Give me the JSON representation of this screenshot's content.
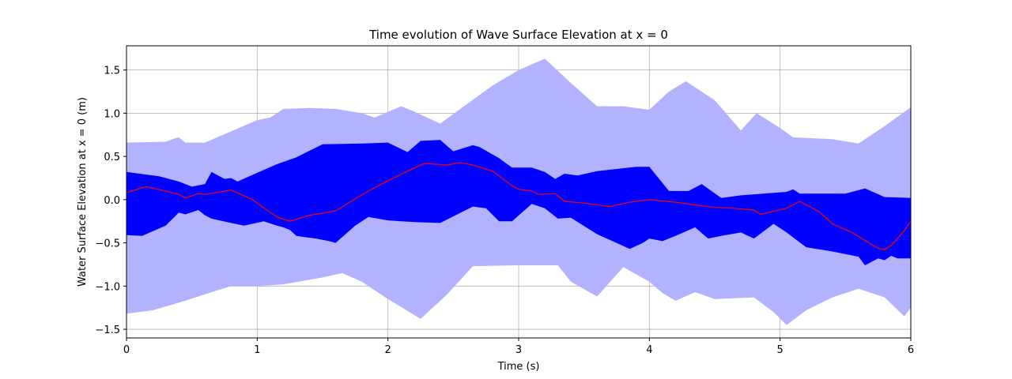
{
  "chart_data": {
    "type": "area",
    "title": "Time evolution of Wave Surface Elevation at x = 0",
    "xlabel": "Time (s)",
    "ylabel": "Water Surface Elevation at x = 0 (m)",
    "xlim": [
      0,
      6
    ],
    "ylim": [
      -1.6,
      1.78
    ],
    "xticks": [
      0,
      1,
      2,
      3,
      4,
      5,
      6
    ],
    "yticks": [
      -1.5,
      -1.0,
      -0.5,
      0.0,
      0.5,
      1.0,
      1.5
    ],
    "grid": true,
    "colors": {
      "outer_band": "#b2b2ff",
      "inner_band": "#0000ff",
      "mean_line": "#ff0000"
    },
    "series": [
      {
        "kind": "band",
        "upper": [
          [
            0,
            0.66
          ],
          [
            0.3,
            0.67
          ],
          [
            0.37,
            0.71
          ],
          [
            0.4,
            0.72
          ],
          [
            0.45,
            0.66
          ],
          [
            0.6,
            0.66
          ],
          [
            0.8,
            0.79
          ],
          [
            1.0,
            0.92
          ],
          [
            1.1,
            0.95
          ],
          [
            1.2,
            1.05
          ],
          [
            1.4,
            1.06
          ],
          [
            1.6,
            1.05
          ],
          [
            1.8,
            1.0
          ],
          [
            1.9,
            0.95
          ],
          [
            2.1,
            1.08
          ],
          [
            2.2,
            1.02
          ],
          [
            2.4,
            0.88
          ],
          [
            2.6,
            1.1
          ],
          [
            2.8,
            1.32
          ],
          [
            3.0,
            1.5
          ],
          [
            3.2,
            1.63
          ],
          [
            3.4,
            1.35
          ],
          [
            3.6,
            1.08
          ],
          [
            3.8,
            1.08
          ],
          [
            4.0,
            1.04
          ],
          [
            4.15,
            1.25
          ],
          [
            4.28,
            1.37
          ],
          [
            4.5,
            1.15
          ],
          [
            4.7,
            0.8
          ],
          [
            4.82,
            1.0
          ],
          [
            5.0,
            0.83
          ],
          [
            5.1,
            0.72
          ],
          [
            5.4,
            0.7
          ],
          [
            5.6,
            0.65
          ],
          [
            5.8,
            0.85
          ],
          [
            6.0,
            1.07
          ]
        ],
        "lower": [
          [
            0,
            -1.32
          ],
          [
            0.2,
            -1.28
          ],
          [
            0.45,
            -1.17
          ],
          [
            0.65,
            -1.07
          ],
          [
            0.8,
            -1.0
          ],
          [
            1.0,
            -1.0
          ],
          [
            1.2,
            -0.98
          ],
          [
            1.5,
            -0.9
          ],
          [
            1.65,
            -0.85
          ],
          [
            1.8,
            -0.95
          ],
          [
            2.0,
            -1.15
          ],
          [
            2.25,
            -1.38
          ],
          [
            2.45,
            -1.1
          ],
          [
            2.65,
            -0.77
          ],
          [
            3.0,
            -0.76
          ],
          [
            3.3,
            -0.76
          ],
          [
            3.4,
            -0.95
          ],
          [
            3.6,
            -1.12
          ],
          [
            3.8,
            -0.78
          ],
          [
            4.0,
            -0.95
          ],
          [
            4.1,
            -1.08
          ],
          [
            4.2,
            -1.17
          ],
          [
            4.35,
            -1.07
          ],
          [
            4.5,
            -1.15
          ],
          [
            4.8,
            -1.13
          ],
          [
            4.95,
            -1.3
          ],
          [
            5.05,
            -1.45
          ],
          [
            5.2,
            -1.28
          ],
          [
            5.4,
            -1.13
          ],
          [
            5.6,
            -1.03
          ],
          [
            5.8,
            -1.13
          ],
          [
            5.95,
            -1.35
          ],
          [
            6.0,
            -1.25
          ]
        ]
      },
      {
        "kind": "band",
        "upper": [
          [
            0,
            0.32
          ],
          [
            0.15,
            0.29
          ],
          [
            0.25,
            0.27
          ],
          [
            0.4,
            0.21
          ],
          [
            0.5,
            0.15
          ],
          [
            0.6,
            0.18
          ],
          [
            0.65,
            0.32
          ],
          [
            0.75,
            0.24
          ],
          [
            0.8,
            0.25
          ],
          [
            0.85,
            0.21
          ],
          [
            1.0,
            0.31
          ],
          [
            1.15,
            0.41
          ],
          [
            1.3,
            0.49
          ],
          [
            1.5,
            0.64
          ],
          [
            1.8,
            0.65
          ],
          [
            2.0,
            0.66
          ],
          [
            2.15,
            0.55
          ],
          [
            2.25,
            0.68
          ],
          [
            2.4,
            0.69
          ],
          [
            2.5,
            0.56
          ],
          [
            2.65,
            0.63
          ],
          [
            2.7,
            0.61
          ],
          [
            2.85,
            0.48
          ],
          [
            2.95,
            0.37
          ],
          [
            3.1,
            0.37
          ],
          [
            3.2,
            0.32
          ],
          [
            3.28,
            0.24
          ],
          [
            3.35,
            0.3
          ],
          [
            3.45,
            0.28
          ],
          [
            3.6,
            0.33
          ],
          [
            3.9,
            0.38
          ],
          [
            4.0,
            0.38
          ],
          [
            4.15,
            0.1
          ],
          [
            4.3,
            0.1
          ],
          [
            4.4,
            0.18
          ],
          [
            4.55,
            0.02
          ],
          [
            4.7,
            0.05
          ],
          [
            5.05,
            0.09
          ],
          [
            5.1,
            0.12
          ],
          [
            5.15,
            0.07
          ],
          [
            5.25,
            0.07
          ],
          [
            5.5,
            0.07
          ],
          [
            5.65,
            0.13
          ],
          [
            5.8,
            0.03
          ],
          [
            6.0,
            0.02
          ]
        ],
        "lower": [
          [
            0,
            -0.41
          ],
          [
            0.12,
            -0.42
          ],
          [
            0.3,
            -0.3
          ],
          [
            0.4,
            -0.15
          ],
          [
            0.45,
            -0.17
          ],
          [
            0.55,
            -0.12
          ],
          [
            0.6,
            -0.18
          ],
          [
            0.65,
            -0.22
          ],
          [
            0.8,
            -0.27
          ],
          [
            0.9,
            -0.3
          ],
          [
            1.05,
            -0.25
          ],
          [
            1.15,
            -0.3
          ],
          [
            1.2,
            -0.32
          ],
          [
            1.25,
            -0.35
          ],
          [
            1.3,
            -0.42
          ],
          [
            1.45,
            -0.45
          ],
          [
            1.55,
            -0.48
          ],
          [
            1.6,
            -0.5
          ],
          [
            1.75,
            -0.3
          ],
          [
            1.85,
            -0.2
          ],
          [
            2.0,
            -0.24
          ],
          [
            2.2,
            -0.26
          ],
          [
            2.4,
            -0.27
          ],
          [
            2.65,
            -0.08
          ],
          [
            2.75,
            -0.1
          ],
          [
            2.85,
            -0.25
          ],
          [
            2.95,
            -0.25
          ],
          [
            3.1,
            -0.05
          ],
          [
            3.2,
            -0.1
          ],
          [
            3.3,
            -0.22
          ],
          [
            3.4,
            -0.21
          ],
          [
            3.6,
            -0.4
          ],
          [
            3.85,
            -0.57
          ],
          [
            3.95,
            -0.5
          ],
          [
            4.0,
            -0.45
          ],
          [
            4.1,
            -0.48
          ],
          [
            4.2,
            -0.42
          ],
          [
            4.35,
            -0.32
          ],
          [
            4.45,
            -0.45
          ],
          [
            4.55,
            -0.42
          ],
          [
            4.7,
            -0.38
          ],
          [
            4.8,
            -0.45
          ],
          [
            4.95,
            -0.28
          ],
          [
            5.05,
            -0.38
          ],
          [
            5.2,
            -0.55
          ],
          [
            5.4,
            -0.6
          ],
          [
            5.6,
            -0.66
          ],
          [
            5.65,
            -0.76
          ],
          [
            5.75,
            -0.68
          ],
          [
            5.8,
            -0.7
          ],
          [
            5.85,
            -0.65
          ],
          [
            5.9,
            -0.68
          ],
          [
            6.0,
            -0.68
          ]
        ]
      },
      {
        "kind": "line",
        "values": [
          [
            0,
            0.08
          ],
          [
            0.15,
            0.15
          ],
          [
            0.3,
            0.1
          ],
          [
            0.4,
            0.06
          ],
          [
            0.45,
            0.02
          ],
          [
            0.55,
            0.07
          ],
          [
            0.6,
            0.06
          ],
          [
            0.8,
            0.11
          ],
          [
            0.95,
            0.01
          ],
          [
            1.0,
            -0.04
          ],
          [
            1.15,
            -0.2
          ],
          [
            1.25,
            -0.25
          ],
          [
            1.4,
            -0.18
          ],
          [
            1.6,
            -0.13
          ],
          [
            1.75,
            0.01
          ],
          [
            1.85,
            0.1
          ],
          [
            2.0,
            0.22
          ],
          [
            2.15,
            0.33
          ],
          [
            2.28,
            0.42
          ],
          [
            2.45,
            0.4
          ],
          [
            2.55,
            0.43
          ],
          [
            2.65,
            0.4
          ],
          [
            2.8,
            0.33
          ],
          [
            2.95,
            0.16
          ],
          [
            3.0,
            0.12
          ],
          [
            3.1,
            0.1
          ],
          [
            3.15,
            0.06
          ],
          [
            3.28,
            0.07
          ],
          [
            3.35,
            -0.02
          ],
          [
            3.5,
            -0.04
          ],
          [
            3.7,
            -0.08
          ],
          [
            3.85,
            -0.03
          ],
          [
            4.0,
            0.0
          ],
          [
            4.2,
            -0.03
          ],
          [
            4.5,
            -0.09
          ],
          [
            4.65,
            -0.1
          ],
          [
            4.8,
            -0.12
          ],
          [
            4.85,
            -0.17
          ],
          [
            5.05,
            -0.1
          ],
          [
            5.15,
            -0.02
          ],
          [
            5.3,
            -0.14
          ],
          [
            5.4,
            -0.28
          ],
          [
            5.55,
            -0.38
          ],
          [
            5.7,
            -0.52
          ],
          [
            5.75,
            -0.56
          ],
          [
            5.8,
            -0.58
          ],
          [
            5.85,
            -0.53
          ],
          [
            5.95,
            -0.36
          ],
          [
            6.0,
            -0.25
          ]
        ]
      }
    ]
  }
}
